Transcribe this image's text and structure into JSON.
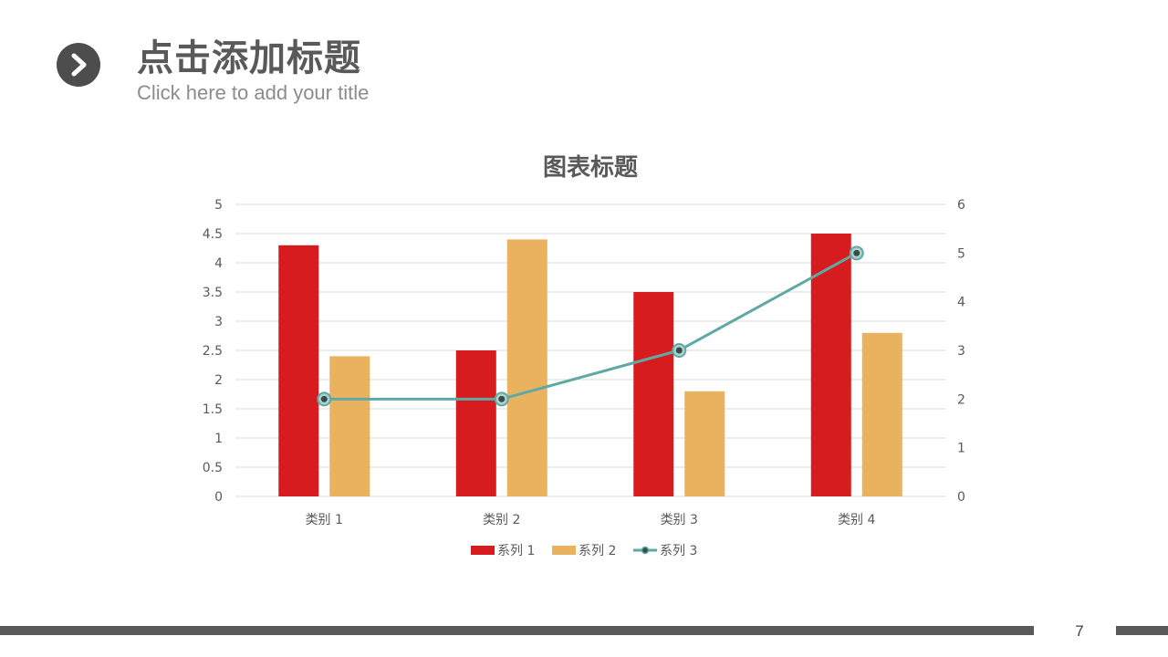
{
  "header": {
    "title": "点击添加标题",
    "subtitle": "Click here to add your title",
    "icon": "chevron-right-icon"
  },
  "colors": {
    "series1": "#d71c1f",
    "series2": "#e9b25f",
    "series3": "#5fa9a4",
    "marker": "#3d4a4a",
    "grid": "#d9d9d9",
    "text": "#595959",
    "footer": "#595959"
  },
  "chart_data": {
    "type": "bar",
    "title": "图表标题",
    "categories": [
      "类别 1",
      "类别 2",
      "类别 3",
      "类别 4"
    ],
    "series": [
      {
        "name": "系列 1",
        "type": "bar",
        "axis": "left",
        "values": [
          4.3,
          2.5,
          3.5,
          4.5
        ]
      },
      {
        "name": "系列 2",
        "type": "bar",
        "axis": "left",
        "values": [
          2.4,
          4.4,
          1.8,
          2.8
        ]
      },
      {
        "name": "系列 3",
        "type": "line",
        "axis": "right",
        "values": [
          2,
          2,
          3,
          5
        ]
      }
    ],
    "ylim": [
      0,
      5
    ],
    "yticks": [
      "0",
      "0.5",
      "1",
      "1.5",
      "2",
      "2.5",
      "3",
      "3.5",
      "4",
      "4.5",
      "5"
    ],
    "y2lim": [
      0,
      6
    ],
    "y2ticks": [
      "0",
      "1",
      "2",
      "3",
      "4",
      "5",
      "6"
    ],
    "grid": true,
    "legend": "bottom"
  },
  "footer": {
    "page_number": "7"
  }
}
